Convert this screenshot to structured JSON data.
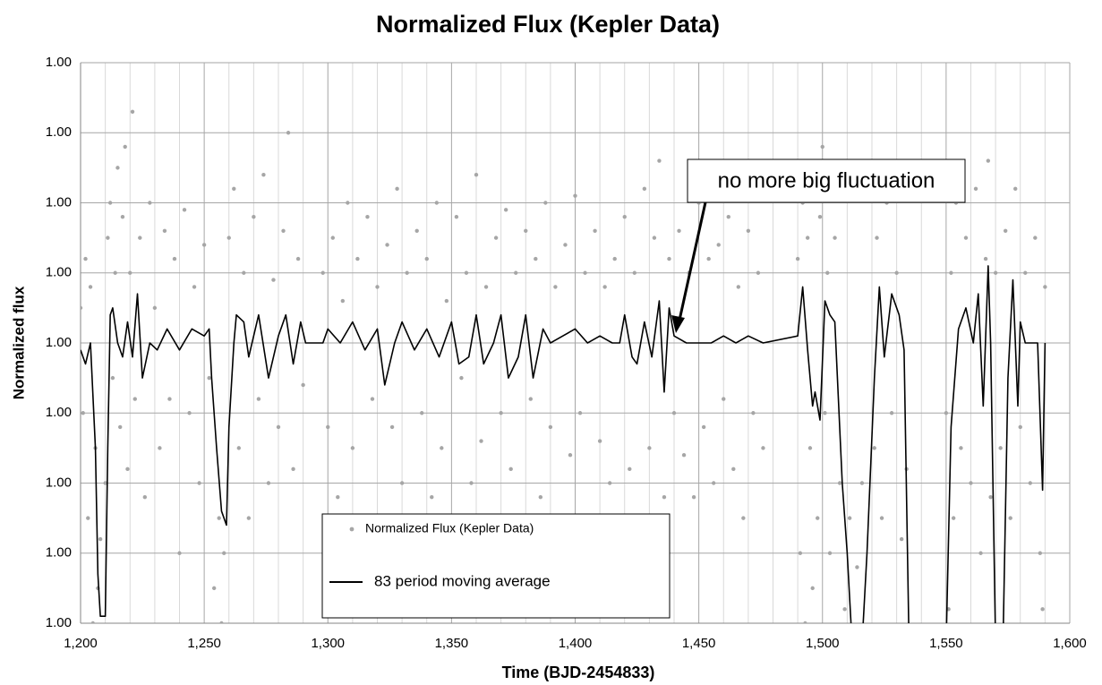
{
  "chart_data": {
    "type": "scatter",
    "title": "Normalized Flux (Kepler Data)",
    "x_label": "Time (BJD-2454833)",
    "y_label": "Normalized flux",
    "annotation": "no more big fluctuation",
    "legend": "lower center",
    "grid": true,
    "xlim": [
      1200,
      1600
    ],
    "xticks": [
      {
        "value": 1200,
        "label": "1,200"
      },
      {
        "value": 1250,
        "label": "1,250"
      },
      {
        "value": 1300,
        "label": "1,300"
      },
      {
        "value": 1350,
        "label": "1,350"
      },
      {
        "value": 1400,
        "label": "1,400"
      },
      {
        "value": 1450,
        "label": "1,450"
      },
      {
        "value": 1500,
        "label": "1,500"
      },
      {
        "value": 1550,
        "label": "1,550"
      },
      {
        "value": 1600,
        "label": "1,600"
      }
    ],
    "xminorticks": [
      1210,
      1220,
      1230,
      1240,
      1260,
      1270,
      1280,
      1290,
      1310,
      1320,
      1330,
      1340,
      1360,
      1370,
      1380,
      1390,
      1410,
      1420,
      1430,
      1440,
      1460,
      1470,
      1480,
      1490,
      1510,
      1520,
      1530,
      1540,
      1560,
      1570,
      1580,
      1590
    ],
    "ylim": [
      0.9996,
      1.0004
    ],
    "yticks": [
      {
        "value": 0.9996,
        "label": "1.00"
      },
      {
        "value": 0.9997,
        "label": "1.00"
      },
      {
        "value": 0.9998,
        "label": "1.00"
      },
      {
        "value": 0.9999,
        "label": "1.00"
      },
      {
        "value": 1.0,
        "label": "1.00"
      },
      {
        "value": 1.0001,
        "label": "1.00"
      },
      {
        "value": 1.0002,
        "label": "1.00"
      },
      {
        "value": 1.0003,
        "label": "1.00"
      },
      {
        "value": 1.0004,
        "label": "1.00"
      }
    ],
    "series": [
      {
        "name": "Normalized Flux (Kepler Data)",
        "mode": "markers",
        "color": "#a6a6a6",
        "x": [
          1200,
          1201,
          1202,
          1203,
          1204,
          1205,
          1206,
          1207,
          1208,
          1209,
          1210,
          1211,
          1212,
          1213,
          1214,
          1215,
          1216,
          1217,
          1218,
          1219,
          1220,
          1221,
          1222,
          1224,
          1226,
          1228,
          1230,
          1232,
          1234,
          1236,
          1238,
          1240,
          1242,
          1244,
          1246,
          1248,
          1250,
          1252,
          1254,
          1256,
          1257,
          1258,
          1260,
          1262,
          1264,
          1266,
          1268,
          1270,
          1272,
          1274,
          1276,
          1278,
          1280,
          1282,
          1284,
          1286,
          1288,
          1290,
          1298,
          1300,
          1302,
          1304,
          1306,
          1308,
          1310,
          1312,
          1314,
          1316,
          1318,
          1320,
          1322,
          1324,
          1326,
          1328,
          1330,
          1332,
          1334,
          1336,
          1338,
          1340,
          1342,
          1344,
          1346,
          1348,
          1350,
          1352,
          1354,
          1356,
          1358,
          1360,
          1362,
          1364,
          1366,
          1368,
          1370,
          1372,
          1374,
          1376,
          1378,
          1380,
          1382,
          1384,
          1386,
          1388,
          1390,
          1392,
          1394,
          1396,
          1398,
          1400,
          1402,
          1404,
          1406,
          1408,
          1410,
          1412,
          1414,
          1416,
          1420,
          1422,
          1424,
          1426,
          1428,
          1430,
          1432,
          1434,
          1436,
          1438,
          1440,
          1442,
          1444,
          1446,
          1448,
          1450,
          1452,
          1454,
          1456,
          1458,
          1460,
          1462,
          1464,
          1466,
          1468,
          1470,
          1472,
          1474,
          1476,
          1490,
          1491,
          1492,
          1493,
          1494,
          1495,
          1496,
          1497,
          1498,
          1499,
          1500,
          1501,
          1502,
          1503,
          1505,
          1507,
          1509,
          1511,
          1514,
          1516,
          1520,
          1521,
          1522,
          1524,
          1526,
          1528,
          1530,
          1532,
          1534,
          1550,
          1551,
          1552,
          1553,
          1554,
          1556,
          1558,
          1560,
          1562,
          1564,
          1566,
          1567,
          1568,
          1570,
          1572,
          1574,
          1576,
          1578,
          1580,
          1582,
          1584,
          1586,
          1588,
          1589,
          1590
        ],
        "values": [
          1.00005,
          0.9999,
          1.00012,
          0.99975,
          1.00008,
          0.9996,
          0.99985,
          0.99965,
          0.99972,
          0.99958,
          0.9998,
          1.00015,
          1.0002,
          0.99995,
          1.0001,
          1.00025,
          0.99988,
          1.00018,
          1.00028,
          0.99982,
          1.0001,
          1.00033,
          0.99992,
          1.00015,
          0.99978,
          1.0002,
          1.00005,
          0.99985,
          1.00016,
          0.99992,
          1.00012,
          0.9997,
          1.00019,
          0.9999,
          1.00008,
          0.9998,
          1.00014,
          0.99995,
          0.99965,
          0.99975,
          0.9996,
          0.9997,
          1.00015,
          1.00022,
          0.99985,
          1.0001,
          0.99975,
          1.00018,
          0.99992,
          1.00024,
          0.9998,
          1.00009,
          0.99988,
          1.00016,
          1.0003,
          0.99982,
          1.00012,
          0.99994,
          1.0001,
          0.99988,
          1.00015,
          0.99978,
          1.00006,
          1.0002,
          0.99985,
          1.00012,
          0.9997,
          1.00018,
          0.99992,
          1.00008,
          0.99975,
          1.00014,
          0.99988,
          1.00022,
          0.9998,
          1.0001,
          0.99966,
          1.00016,
          0.9999,
          1.00012,
          0.99978,
          1.0002,
          0.99985,
          1.00006,
          0.99972,
          1.00018,
          0.99995,
          1.0001,
          0.9998,
          1.00024,
          0.99986,
          1.00008,
          0.99975,
          1.00015,
          0.9999,
          1.00019,
          0.99982,
          1.0001,
          0.9997,
          1.00016,
          0.99992,
          1.00012,
          0.99978,
          1.0002,
          0.99988,
          1.00008,
          0.99975,
          1.00014,
          0.99984,
          1.00021,
          0.9999,
          1.0001,
          0.99972,
          1.00016,
          0.99986,
          1.00008,
          0.9998,
          1.00012,
          1.00018,
          0.99982,
          1.0001,
          0.99975,
          1.00022,
          0.99985,
          1.00015,
          1.00026,
          0.99978,
          1.00012,
          0.9999,
          1.00016,
          0.99984,
          1.0001,
          0.99978,
          1.0002,
          0.99988,
          1.00012,
          0.9998,
          1.00014,
          0.99992,
          1.00018,
          0.99982,
          1.00008,
          0.99975,
          1.00016,
          0.9999,
          1.0001,
          0.99985,
          1.00012,
          0.9997,
          1.0002,
          0.9996,
          1.00015,
          0.99985,
          0.99965,
          1.00025,
          0.99975,
          1.00018,
          1.00028,
          0.9999,
          1.0001,
          0.9997,
          1.00015,
          0.9998,
          0.99962,
          0.99975,
          0.99968,
          0.9998,
          1.00026,
          0.99985,
          1.00015,
          0.99975,
          1.0002,
          0.9999,
          1.0001,
          0.99972,
          0.99982,
          0.9999,
          0.99962,
          1.0001,
          0.99975,
          1.0002,
          0.99985,
          1.00015,
          0.9998,
          1.00022,
          0.9997,
          1.00012,
          1.00026,
          0.99978,
          1.0001,
          0.99985,
          1.00016,
          0.99975,
          1.00022,
          0.99988,
          1.0001,
          0.9998,
          1.00015,
          0.9997,
          0.99962,
          1.00008
        ]
      },
      {
        "name": "83 period moving average",
        "mode": "line",
        "color": "#000000",
        "x": [
          1200,
          1202,
          1204,
          1206,
          1207,
          1208,
          1210,
          1211,
          1212,
          1213,
          1215,
          1217,
          1219,
          1221,
          1223,
          1225,
          1228,
          1231,
          1235,
          1240,
          1245,
          1250,
          1252,
          1253,
          1255,
          1257,
          1259,
          1260,
          1262,
          1263,
          1266,
          1268,
          1272,
          1276,
          1280,
          1283,
          1286,
          1289,
          1291,
          1298,
          1300,
          1305,
          1310,
          1315,
          1320,
          1323,
          1327,
          1330,
          1335,
          1340,
          1345,
          1350,
          1353,
          1357,
          1360,
          1363,
          1367,
          1370,
          1373,
          1377,
          1380,
          1383,
          1387,
          1390,
          1395,
          1400,
          1405,
          1410,
          1415,
          1418,
          1420,
          1423,
          1425,
          1428,
          1431,
          1434,
          1436,
          1438,
          1440,
          1445,
          1450,
          1455,
          1460,
          1465,
          1470,
          1476,
          1490,
          1492,
          1494,
          1496,
          1497,
          1499,
          1501,
          1503,
          1505,
          1508,
          1510,
          1512,
          1516,
          1518,
          1521,
          1523,
          1525,
          1528,
          1531,
          1533,
          1535,
          1550,
          1552,
          1555,
          1558,
          1561,
          1563,
          1565,
          1567,
          1568,
          1570,
          1573,
          1575,
          1577,
          1579,
          1580,
          1582,
          1587,
          1589,
          1590
        ],
        "values": [
          0.99999,
          0.99997,
          1.0,
          0.99985,
          0.99967,
          0.99961,
          0.99961,
          0.99985,
          1.00004,
          1.00005,
          1.0,
          0.99998,
          1.00003,
          0.99998,
          1.00007,
          0.99995,
          1.0,
          0.99999,
          1.00002,
          0.99999,
          1.00002,
          1.00001,
          1.00002,
          0.99995,
          0.99985,
          0.99976,
          0.99974,
          0.99988,
          1.0,
          1.00004,
          1.00003,
          0.99998,
          1.00004,
          0.99995,
          1.00001,
          1.00004,
          0.99997,
          1.00003,
          1.0,
          1.0,
          1.00002,
          1.0,
          1.00003,
          0.99999,
          1.00002,
          0.99994,
          1.0,
          1.00003,
          0.99999,
          1.00002,
          0.99998,
          1.00003,
          0.99997,
          0.99998,
          1.00004,
          0.99997,
          1.0,
          1.00004,
          0.99995,
          0.99998,
          1.00004,
          0.99995,
          1.00002,
          1.0,
          1.00001,
          1.00002,
          1.0,
          1.00001,
          1.0,
          1.0,
          1.00004,
          0.99998,
          0.99997,
          1.00003,
          0.99998,
          1.00006,
          0.99993,
          1.00005,
          1.00001,
          1.0,
          1.0,
          1.0,
          1.00001,
          1.0,
          1.00001,
          1.0,
          1.00001,
          1.00008,
          0.99999,
          0.99991,
          0.99993,
          0.99989,
          1.00006,
          1.00004,
          1.00003,
          0.9998,
          0.9997,
          0.99957,
          0.99957,
          0.9997,
          0.99995,
          1.00008,
          0.99998,
          1.00007,
          1.00004,
          0.99999,
          0.99957,
          0.99957,
          0.99988,
          1.00002,
          1.00005,
          1.0,
          1.00007,
          0.99991,
          1.00011,
          1.0,
          0.99957,
          0.99957,
          0.99995,
          1.00009,
          0.99991,
          1.00003,
          1.0,
          1.0,
          0.99979,
          1.0
        ]
      }
    ]
  }
}
